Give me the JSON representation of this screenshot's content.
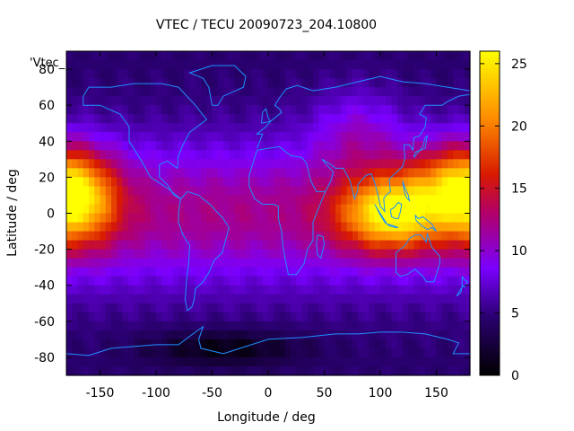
{
  "chart_data": {
    "type": "heatmap",
    "title": "VTEC / TECU 20090723_204.10800",
    "xlabel": "Longitude / deg",
    "ylabel": "Latitude / deg",
    "legend_key": "'Vtec_",
    "xlim": [
      -180,
      180
    ],
    "ylim": [
      -90,
      90
    ],
    "x_ticks": [
      -150,
      -100,
      -50,
      0,
      50,
      100,
      150
    ],
    "y_ticks": [
      -80,
      -60,
      -40,
      -20,
      0,
      20,
      40,
      60,
      80
    ],
    "colorbar": {
      "range": [
        0,
        26
      ],
      "ticks": [
        0,
        5,
        10,
        15,
        20,
        25
      ],
      "colormap": "black-purple-red-orange-yellow"
    },
    "field": {
      "base_tecu": 4.5,
      "background_tecu": 7.5,
      "anomalies": [
        {
          "lon": 110,
          "lat": 0,
          "peak_tecu": 15,
          "lon_width": 45,
          "lat_width": 20
        },
        {
          "lon": -170,
          "lat": 8,
          "peak_tecu": 13,
          "lon_width": 35,
          "lat_width": 25
        },
        {
          "lon": 160,
          "lat": 18,
          "peak_tecu": 7,
          "lon_width": 40,
          "lat_width": 22
        },
        {
          "lon": 80,
          "lat": 45,
          "peak_tecu": 4,
          "lon_width": 40,
          "lat_width": 25
        },
        {
          "lon": -40,
          "lat": -75,
          "peak_tecu": -4,
          "lon_width": 70,
          "lat_width": 10
        }
      ]
    },
    "coastline_color": "#1e90ff"
  }
}
